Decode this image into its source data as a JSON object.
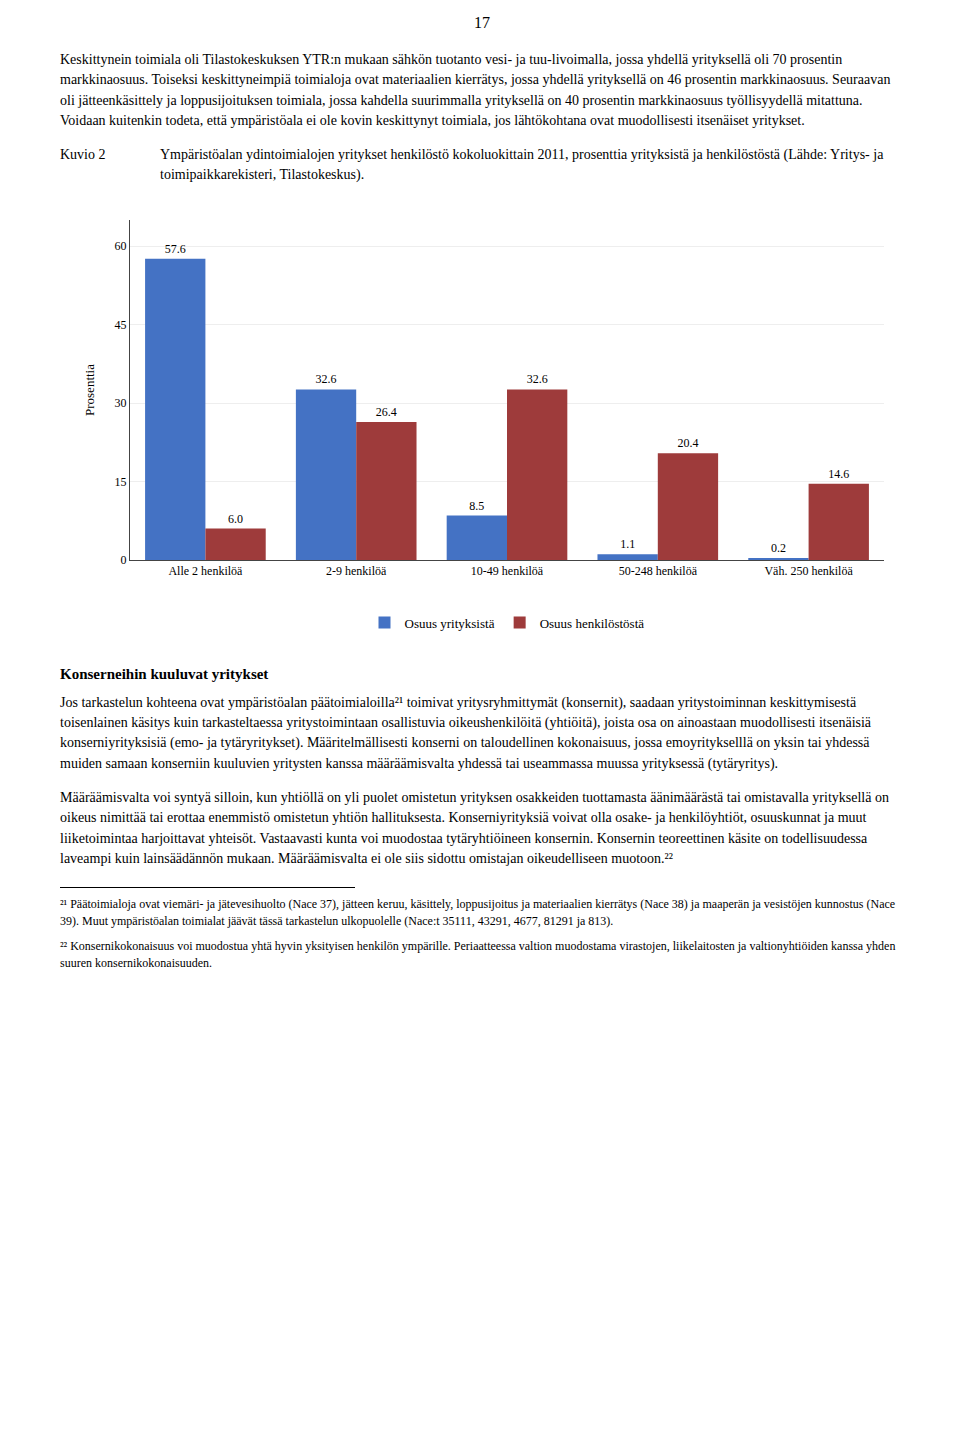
{
  "page_number": "17",
  "intro_text": "Keskittynein toimiala oli Tilastokeskuksen YTR:n mukaan sähkön tuotanto vesi- ja tuu-livoimalla, jossa yhdellä yrityksellä oli 70 prosentin markkinaosuus. Toiseksi keskittyneimpiä toimialoja ovat materiaalien kierrätys, jossa yhdellä yrityksellä on 46 prosentin markkinaosuus. Seuraavan oli jätteenkäsittely ja loppusijoituksen toimiala, jossa kahdella suurimmalla yrityksellä on 40 prosentin markkinaosuus työllisyydellä mitattuna. Voidaan kuitenkin todeta, että ympäristöala ei ole kovin keskittynyt toimiala, jos lähtökohtana ovat muodollisesti itsenäiset yritykset.",
  "figure_label": "Kuvio 2",
  "figure_caption": "Ympäristöalan ydintoimialojen yritykset henkilöstö kokoluokittain 2011, prosenttia yrityksistä ja henkilöstöstä (Lähde: Yritys- ja toimipaikkarekisteri, Tilastokeskus).",
  "chart_data": {
    "type": "bar",
    "categories": [
      "Alle 2 henkilöä",
      "2-9 henkilöä",
      "10-49 henkilöä",
      "50-248 henkilöä",
      "Väh. 250 henkilöä"
    ],
    "series": [
      {
        "name": "Osuus yrityksistä",
        "color": "#4472C4",
        "values": [
          57.6,
          32.6,
          8.5,
          1.1,
          0.2
        ],
        "value_labels": [
          "57.6",
          "32.6",
          "8.5",
          "1.1",
          "0.2"
        ]
      },
      {
        "name": "Osuus henkilöstöstä",
        "color": "#9E3B3B",
        "values": [
          6.0,
          26.4,
          32.6,
          20.4,
          14.6
        ],
        "value_labels": [
          "6.0",
          "26.4",
          "32.6",
          "20.4",
          "14.6"
        ]
      }
    ],
    "ylabel": "Prosenttia",
    "ylim": [
      0,
      65
    ],
    "yticks": [
      0,
      15,
      30,
      45,
      60
    ],
    "grid": true,
    "legend": "bottom",
    "data_labels": true
  },
  "section_title": "Konserneihin kuuluvat yritykset",
  "body_texts": [
    "Jos tarkastelun kohteena ovat ympäristöalan päätoimialoilla²¹ toimivat yritysryhmittymät (konsernit), saadaan yritystoiminnan keskittymisestä toisenlainen käsitys kuin tarkasteltaessa yritystoimintaan osallistuvia oikeushenkilöitä (yhtiöitä), joista osa on ainoastaan muodollisesti itsenäisiä konserniyrityksisiä (emo- ja tytäryritykset). Määritelmällisesti konserni on taloudellinen kokonaisuus, jossa emoyritykselllä on yksin tai yhdessä muiden samaan konserniin kuuluvien yritysten kanssa määräämisvalta yhdessä tai useammassa muussa yrityksessä (tytäryritys).",
    "Määräämisvalta voi syntyä silloin, kun yhtiöllä on yli puolet omistetun yrityksen osakkeiden tuottamasta äänimäärästä tai omistavalla yrityksellä on oikeus nimittää tai erottaa enemmistö omistetun yhtiön hallituksesta. Konserniyrityksiä voivat olla osake- ja henkilöyhtiöt, osuuskunnat ja muut liiketoimintaa harjoittavat yhteisöt. Vastaavasti kunta voi muodostaa tytäryhtiöineen konsernin. Konsernin teoreettinen käsite on todellisuudessa laveampi kuin lainsäädännön mukaan. Määräämisvalta ei ole siis sidottu omistajan oikeudelliseen muotoon.²²"
  ],
  "footnotes": [
    "²¹ Päätoimialoja ovat viemäri- ja jätevesihuolto (Nace 37), jätteen keruu, käsittely, loppusijoitus ja materiaalien kierrätys (Nace 38) ja maaperän ja vesistöjen kunnostus (Nace 39). Muut ympäristöalan toimialat jäävät tässä tarkastelun ulkopuolelle (Nace:t 35111, 43291, 4677, 81291 ja 813).",
    "²² Konsernikokonaisuus voi muodostua yhtä hyvin yksityisen henkilön ympärille. Periaatteessa valtion muodostama virastojen, liikelaitosten ja valtionyhtiöiden kanssa yhden suuren konsernikokonaisuuden."
  ]
}
